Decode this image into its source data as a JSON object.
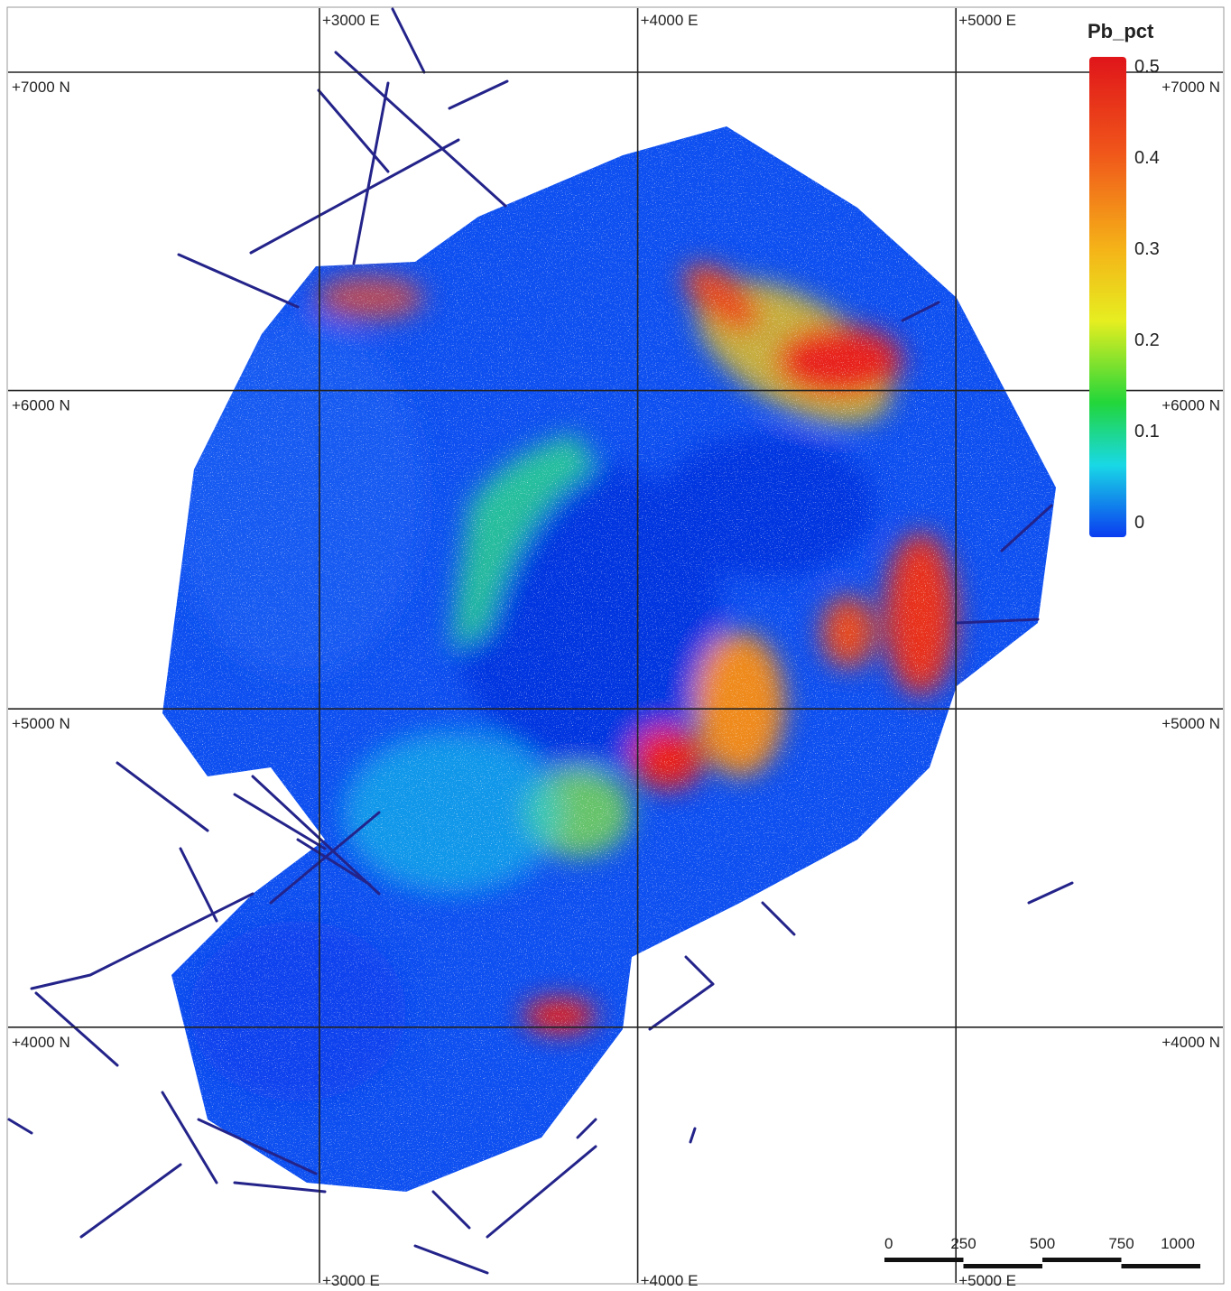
{
  "grid": {
    "eastings": [
      {
        "value": 3000,
        "label": "+3000 E"
      },
      {
        "value": 4000,
        "label": "+4000 E"
      },
      {
        "value": 5000,
        "label": "+5000 E"
      }
    ],
    "northings": [
      {
        "value": 7000,
        "label": "+7000 N"
      },
      {
        "value": 6000,
        "label": "+6000 N"
      },
      {
        "value": 5000,
        "label": "+5000 N"
      },
      {
        "value": 4000,
        "label": "+4000 N"
      }
    ]
  },
  "legend": {
    "title": "Pb_pct",
    "ticks": [
      0.5,
      0.4,
      0.3,
      0.2,
      0.1,
      0
    ]
  },
  "scale_bar": {
    "ticks": [
      0,
      250,
      500,
      750,
      1000
    ]
  }
}
